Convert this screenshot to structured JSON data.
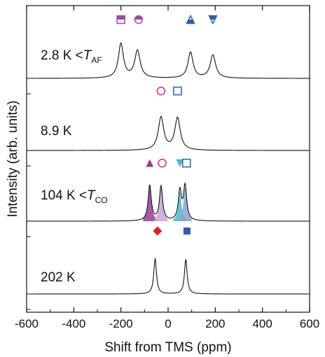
{
  "chart_data": {
    "type": "line",
    "xlabel": "Shift from TMS (ppm)",
    "ylabel": "Intensity (arb. units)",
    "xlim": [
      -600,
      600
    ],
    "x_ticks": [
      -600,
      -400,
      -200,
      0,
      200,
      400,
      600
    ],
    "grid": false,
    "series": [
      {
        "label_prefix": "2.8 K <",
        "label_symbol": "T",
        "label_sub": "AF",
        "baseline": 0.5,
        "peaks": [
          {
            "center": -200,
            "width": 13,
            "height": 4.9
          },
          {
            "center": -130,
            "width": 14,
            "height": 3.9
          },
          {
            "center": 95,
            "width": 13,
            "height": 3.7
          },
          {
            "center": 190,
            "width": 14,
            "height": 3.3
          }
        ],
        "markers": [
          {
            "x": -200,
            "shape": "square-half",
            "color": "#a04aa0"
          },
          {
            "x": -125,
            "shape": "circle-half",
            "color": "#a04aa0"
          },
          {
            "x": 95,
            "shape": "triangle-up-half",
            "color": "#2a5fb0"
          },
          {
            "x": 190,
            "shape": "triangle-down-half",
            "color": "#2a5fb0"
          }
        ]
      },
      {
        "label_prefix": "8.9 K",
        "label_symbol": "",
        "label_sub": "",
        "baseline": 0.5,
        "peaks": [
          {
            "center": -30,
            "width": 14,
            "height": 4.7
          },
          {
            "center": 40,
            "width": 14,
            "height": 4.6
          }
        ],
        "markers": [
          {
            "x": -30,
            "shape": "circle-open",
            "color": "#d02a80"
          },
          {
            "x": 40,
            "shape": "square-open",
            "color": "#2a5fb0"
          }
        ]
      },
      {
        "label_prefix": "104 K <",
        "label_symbol": "T",
        "label_sub": "CO",
        "baseline": 0.5,
        "peaks": [
          {
            "center": -78,
            "width": 8,
            "height": 5.0
          },
          {
            "center": -30,
            "width": 8,
            "height": 4.9
          },
          {
            "center": 50,
            "width": 8,
            "height": 4.2
          },
          {
            "center": 72,
            "width": 8,
            "height": 4.9
          }
        ],
        "markers": [
          {
            "x": -78,
            "shape": "triangle-up-filled",
            "color": "#9a3a9a"
          },
          {
            "x": -25,
            "shape": "circle-open",
            "color": "#d02a80"
          },
          {
            "x": 50,
            "shape": "triangle-down-filled",
            "color": "#40c0c8"
          },
          {
            "x": 78,
            "shape": "square-open",
            "color": "#2a5fb0"
          }
        ]
      },
      {
        "label_prefix": "202 K",
        "label_symbol": "",
        "label_sub": "",
        "baseline": 0.5,
        "peaks": [
          {
            "center": -55,
            "width": 7,
            "height": 5.0
          },
          {
            "center": 75,
            "width": 7,
            "height": 4.9
          }
        ],
        "markers": [
          {
            "x": -45,
            "shape": "diamond-filled",
            "color": "#e02020"
          },
          {
            "x": 80,
            "shape": "square-filled",
            "color": "#2a5fb0"
          }
        ]
      }
    ],
    "fills": [
      {
        "center": -78,
        "width": 8,
        "height": 5.0,
        "color": "#9a3a9a"
      },
      {
        "center": -30,
        "width": 8,
        "height": 4.9,
        "color": "#c8a4d4"
      },
      {
        "center": 50,
        "width": 8,
        "height": 4.2,
        "color": "#40c0c8"
      },
      {
        "center": 72,
        "width": 8,
        "height": 4.9,
        "color": "#8aa0d8"
      }
    ]
  }
}
